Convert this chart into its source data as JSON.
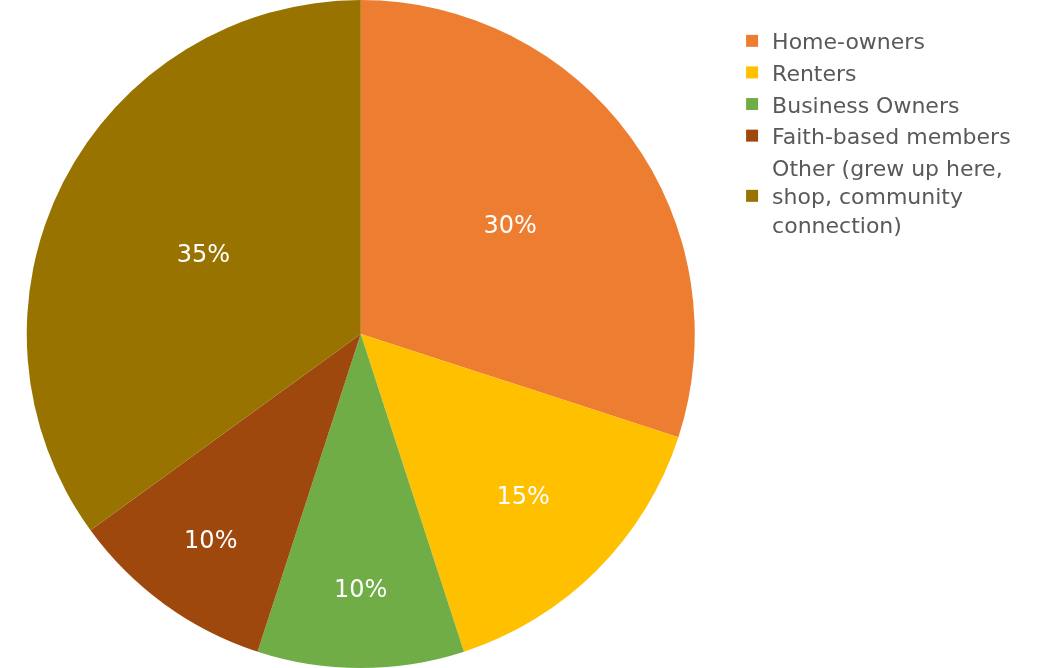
{
  "chart_data": {
    "type": "pie",
    "categories": [
      "Home-owners",
      "Renters",
      "Business Owners",
      "Faith-based members",
      "Other (grew up here, shop, community connection)"
    ],
    "values": [
      30,
      15,
      10,
      10,
      35
    ],
    "value_labels": [
      "30%",
      "15%",
      "10%",
      "10%",
      "35%"
    ],
    "colors": [
      "#ed7d31",
      "#ffc000",
      "#70ad47",
      "#9e480e",
      "#997300"
    ],
    "legend": "right"
  }
}
